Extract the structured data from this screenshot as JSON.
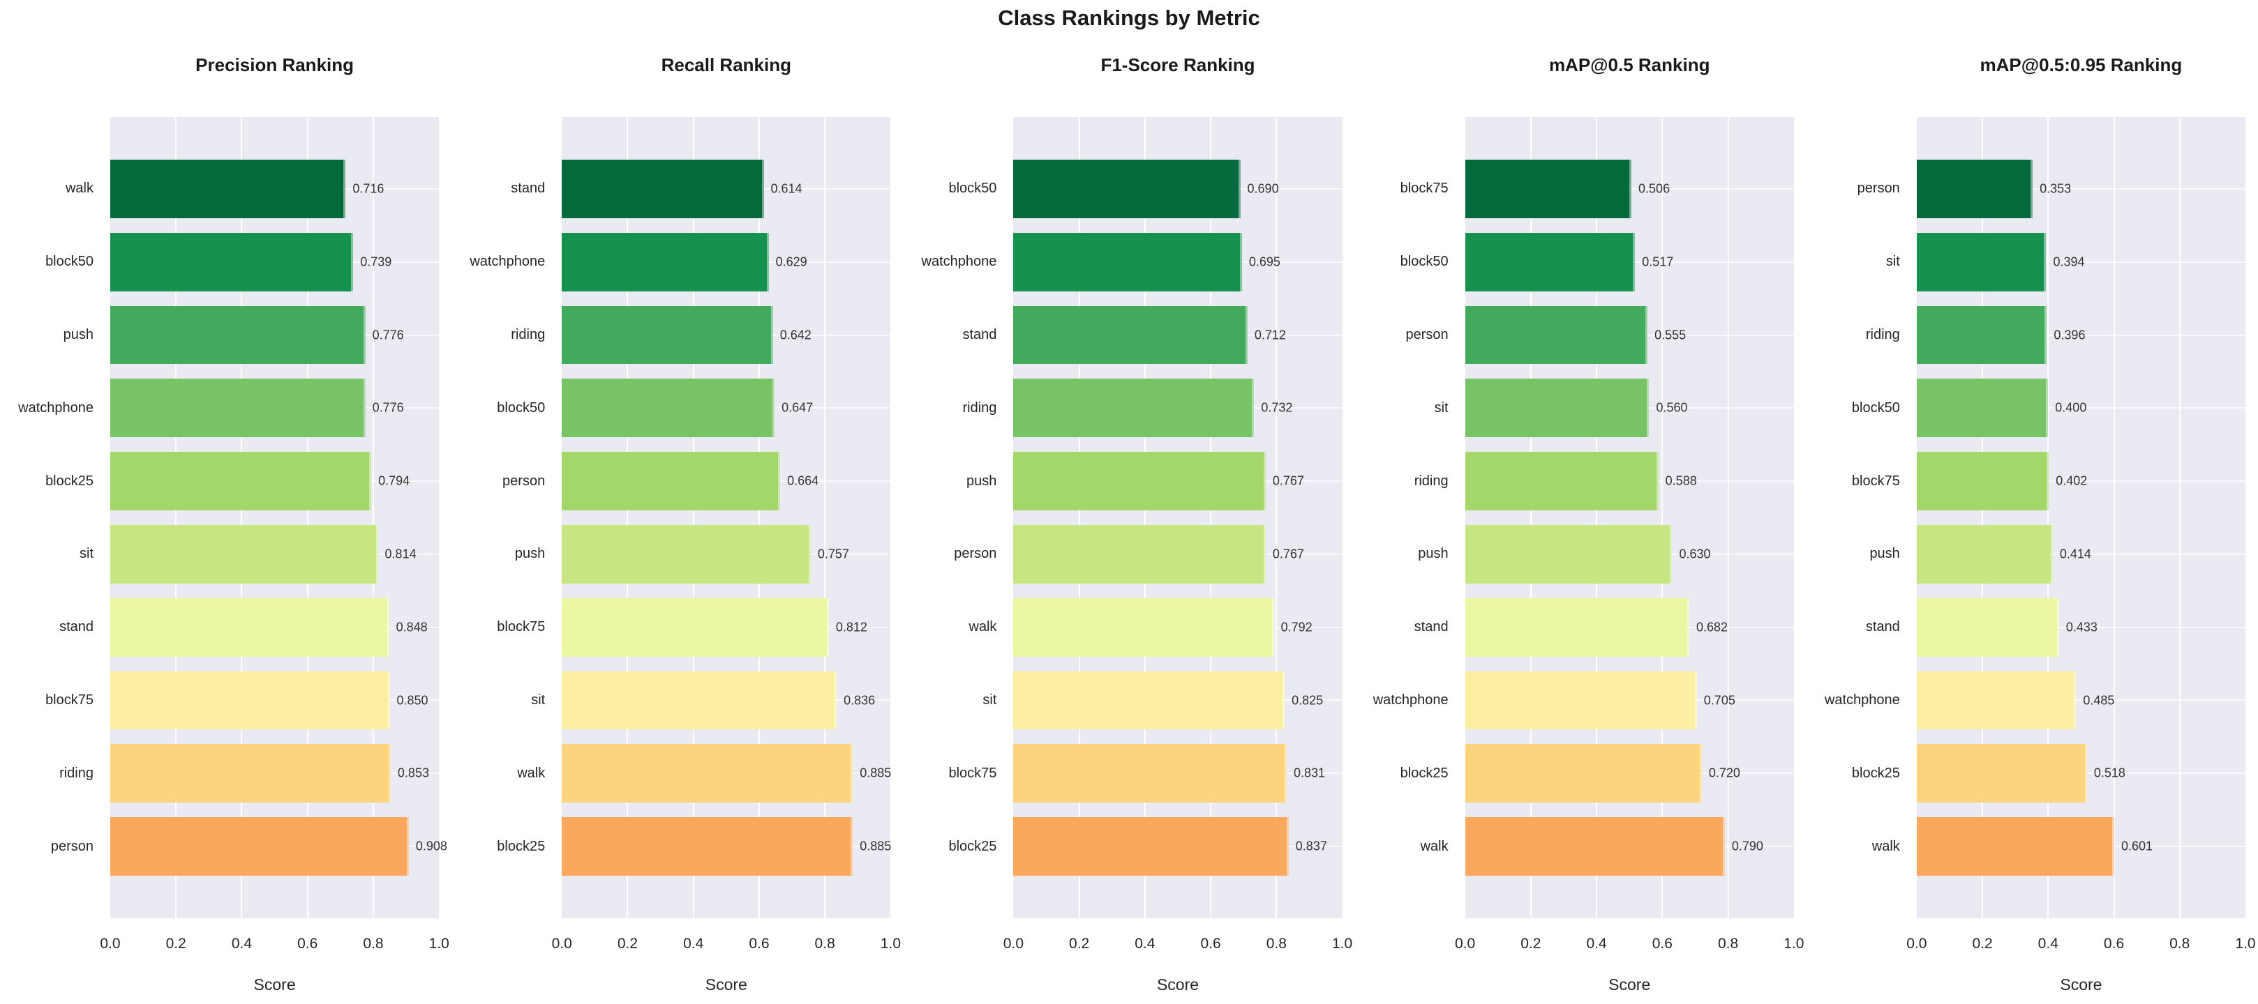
{
  "title": "Class Rankings by Metric",
  "colors": {
    "plot_background": "#EAEAF2",
    "gridline": "#FFFFFF",
    "title_text": "#1A1A1A",
    "tick_text": "#262626",
    "value_text": "#333333",
    "bar_palette_top_to_bottom": [
      "#04693B",
      "#15934E",
      "#42AA5C",
      "#77C366",
      "#A4D76A",
      "#C8E583",
      "#EBF7A3",
      "#FCEFA1",
      "#FCD47D",
      "#F9A85D"
    ]
  },
  "chart_data": [
    {
      "type": "bar",
      "orientation": "horizontal",
      "title": "Precision Ranking",
      "xlabel": "Score",
      "xlim": [
        0,
        1
      ],
      "xticks": [
        "0.0",
        "0.2",
        "0.4",
        "0.6",
        "0.8",
        "1.0"
      ],
      "grid": true,
      "categories": [
        "walk",
        "block50",
        "push",
        "watchphone",
        "block25",
        "sit",
        "stand",
        "block75",
        "riding",
        "person"
      ],
      "values": [
        "0.716",
        "0.739",
        "0.776",
        "0.776",
        "0.794",
        "0.814",
        "0.848",
        "0.850",
        "0.853",
        "0.908"
      ]
    },
    {
      "type": "bar",
      "orientation": "horizontal",
      "title": "Recall Ranking",
      "xlabel": "Score",
      "xlim": [
        0,
        1
      ],
      "xticks": [
        "0.0",
        "0.2",
        "0.4",
        "0.6",
        "0.8",
        "1.0"
      ],
      "grid": true,
      "categories": [
        "stand",
        "watchphone",
        "riding",
        "block50",
        "person",
        "push",
        "block75",
        "sit",
        "walk",
        "block25"
      ],
      "values": [
        "0.614",
        "0.629",
        "0.642",
        "0.647",
        "0.664",
        "0.757",
        "0.812",
        "0.836",
        "0.885",
        "0.885"
      ]
    },
    {
      "type": "bar",
      "orientation": "horizontal",
      "title": "F1-Score Ranking",
      "xlabel": "Score",
      "xlim": [
        0,
        1
      ],
      "xticks": [
        "0.0",
        "0.2",
        "0.4",
        "0.6",
        "0.8",
        "1.0"
      ],
      "grid": true,
      "categories": [
        "block50",
        "watchphone",
        "stand",
        "riding",
        "push",
        "person",
        "walk",
        "sit",
        "block75",
        "block25"
      ],
      "values": [
        "0.690",
        "0.695",
        "0.712",
        "0.732",
        "0.767",
        "0.767",
        "0.792",
        "0.825",
        "0.831",
        "0.837"
      ]
    },
    {
      "type": "bar",
      "orientation": "horizontal",
      "title": "mAP@0.5 Ranking",
      "xlabel": "Score",
      "xlim": [
        0,
        1
      ],
      "xticks": [
        "0.0",
        "0.2",
        "0.4",
        "0.6",
        "0.8",
        "1.0"
      ],
      "grid": true,
      "categories": [
        "block75",
        "block50",
        "person",
        "sit",
        "riding",
        "push",
        "stand",
        "watchphone",
        "block25",
        "walk"
      ],
      "values": [
        "0.506",
        "0.517",
        "0.555",
        "0.560",
        "0.588",
        "0.630",
        "0.682",
        "0.705",
        "0.720",
        "0.790"
      ]
    },
    {
      "type": "bar",
      "orientation": "horizontal",
      "title": "mAP@0.5:0.95 Ranking",
      "xlabel": "Score",
      "xlim": [
        0,
        1
      ],
      "xticks": [
        "0.0",
        "0.2",
        "0.4",
        "0.6",
        "0.8",
        "1.0"
      ],
      "grid": true,
      "categories": [
        "person",
        "sit",
        "riding",
        "block50",
        "block75",
        "push",
        "stand",
        "watchphone",
        "block25",
        "walk"
      ],
      "values": [
        "0.353",
        "0.394",
        "0.396",
        "0.400",
        "0.402",
        "0.414",
        "0.433",
        "0.485",
        "0.518",
        "0.601"
      ]
    }
  ]
}
